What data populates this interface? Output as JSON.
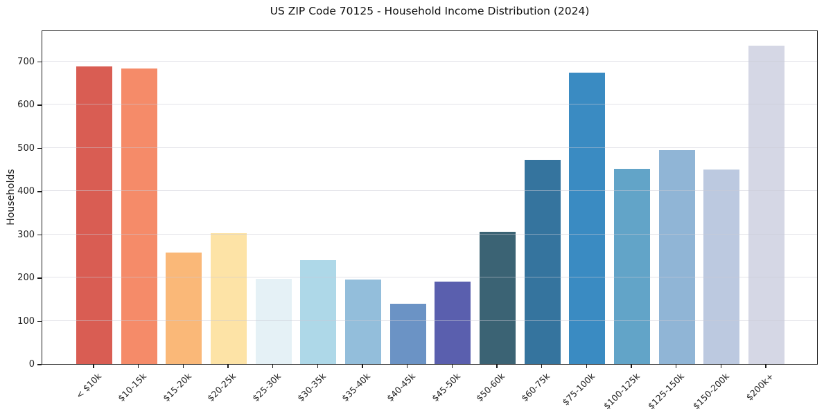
{
  "title": "US ZIP Code 70125 - Household Income Distribution (2024)",
  "chart_data": {
    "type": "bar",
    "title": "US ZIP Code 70125 - Household Income Distribution (2024)",
    "xlabel": "",
    "ylabel": "Households",
    "categories": [
      "< $10k",
      "$10-15k",
      "$15-20k",
      "$20-25k",
      "$25-30k",
      "$30-35k",
      "$35-40k",
      "$40-45k",
      "$45-50k",
      "$50-60k",
      "$60-75k",
      "$75-100k",
      "$100-125k",
      "$125-150k",
      "$150-200k",
      "$200k+"
    ],
    "values": [
      688,
      684,
      258,
      302,
      197,
      240,
      196,
      140,
      191,
      306,
      472,
      673,
      452,
      495,
      450,
      736
    ],
    "bar_colors": [
      "#d95d53",
      "#f58b69",
      "#fab878",
      "#fde3a6",
      "#e5f1f6",
      "#aed8e8",
      "#93bedb",
      "#6b93c5",
      "#5a5fae",
      "#3b6374",
      "#35749e",
      "#3a8bc2",
      "#62a4c8",
      "#90b5d6",
      "#bcc9e0",
      "#d5d7e5"
    ],
    "yticks": [
      0,
      100,
      200,
      300,
      400,
      500,
      600,
      700
    ],
    "ylim": [
      0,
      773
    ],
    "grid": "horizontal-light",
    "legend": "none",
    "background": "#ffffff",
    "spine_color": "#1a1a1a"
  }
}
